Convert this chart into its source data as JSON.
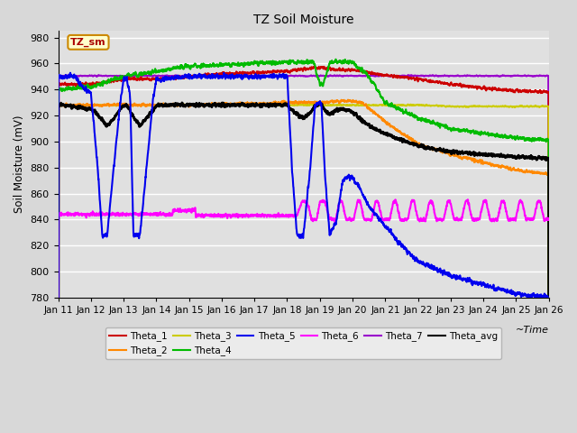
{
  "title": "TZ Soil Moisture",
  "xlabel": "~Time",
  "ylabel": "Soil Moisture (mV)",
  "ylim": [
    780,
    985
  ],
  "yticks": [
    780,
    800,
    820,
    840,
    860,
    880,
    900,
    920,
    940,
    960,
    980
  ],
  "x_labels": [
    "Jan 11",
    "Jan 12",
    "Jan 13",
    "Jan 14",
    "Jan 15",
    "Jan 16",
    "Jan 17",
    "Jan 18",
    "Jan 19",
    "Jan 20",
    "Jan 21",
    "Jan 22",
    "Jan 23",
    "Jan 24",
    "Jan 25",
    "Jan 26"
  ],
  "bg_color": "#e0e0e0",
  "grid_color": "#ffffff",
  "label_box_color": "#ffffcc",
  "label_box_edge": "#cc8800",
  "label_text": "TZ_sm",
  "series": {
    "Theta_1": {
      "color": "#cc0000",
      "lw": 1.5
    },
    "Theta_2": {
      "color": "#ff8800",
      "lw": 1.5
    },
    "Theta_3": {
      "color": "#cccc00",
      "lw": 1.5
    },
    "Theta_4": {
      "color": "#00bb00",
      "lw": 1.5
    },
    "Theta_5": {
      "color": "#0000ee",
      "lw": 1.5
    },
    "Theta_6": {
      "color": "#ff00ff",
      "lw": 1.5
    },
    "Theta_7": {
      "color": "#9900cc",
      "lw": 1.5
    },
    "Theta_avg": {
      "color": "#000000",
      "lw": 2.0
    }
  }
}
